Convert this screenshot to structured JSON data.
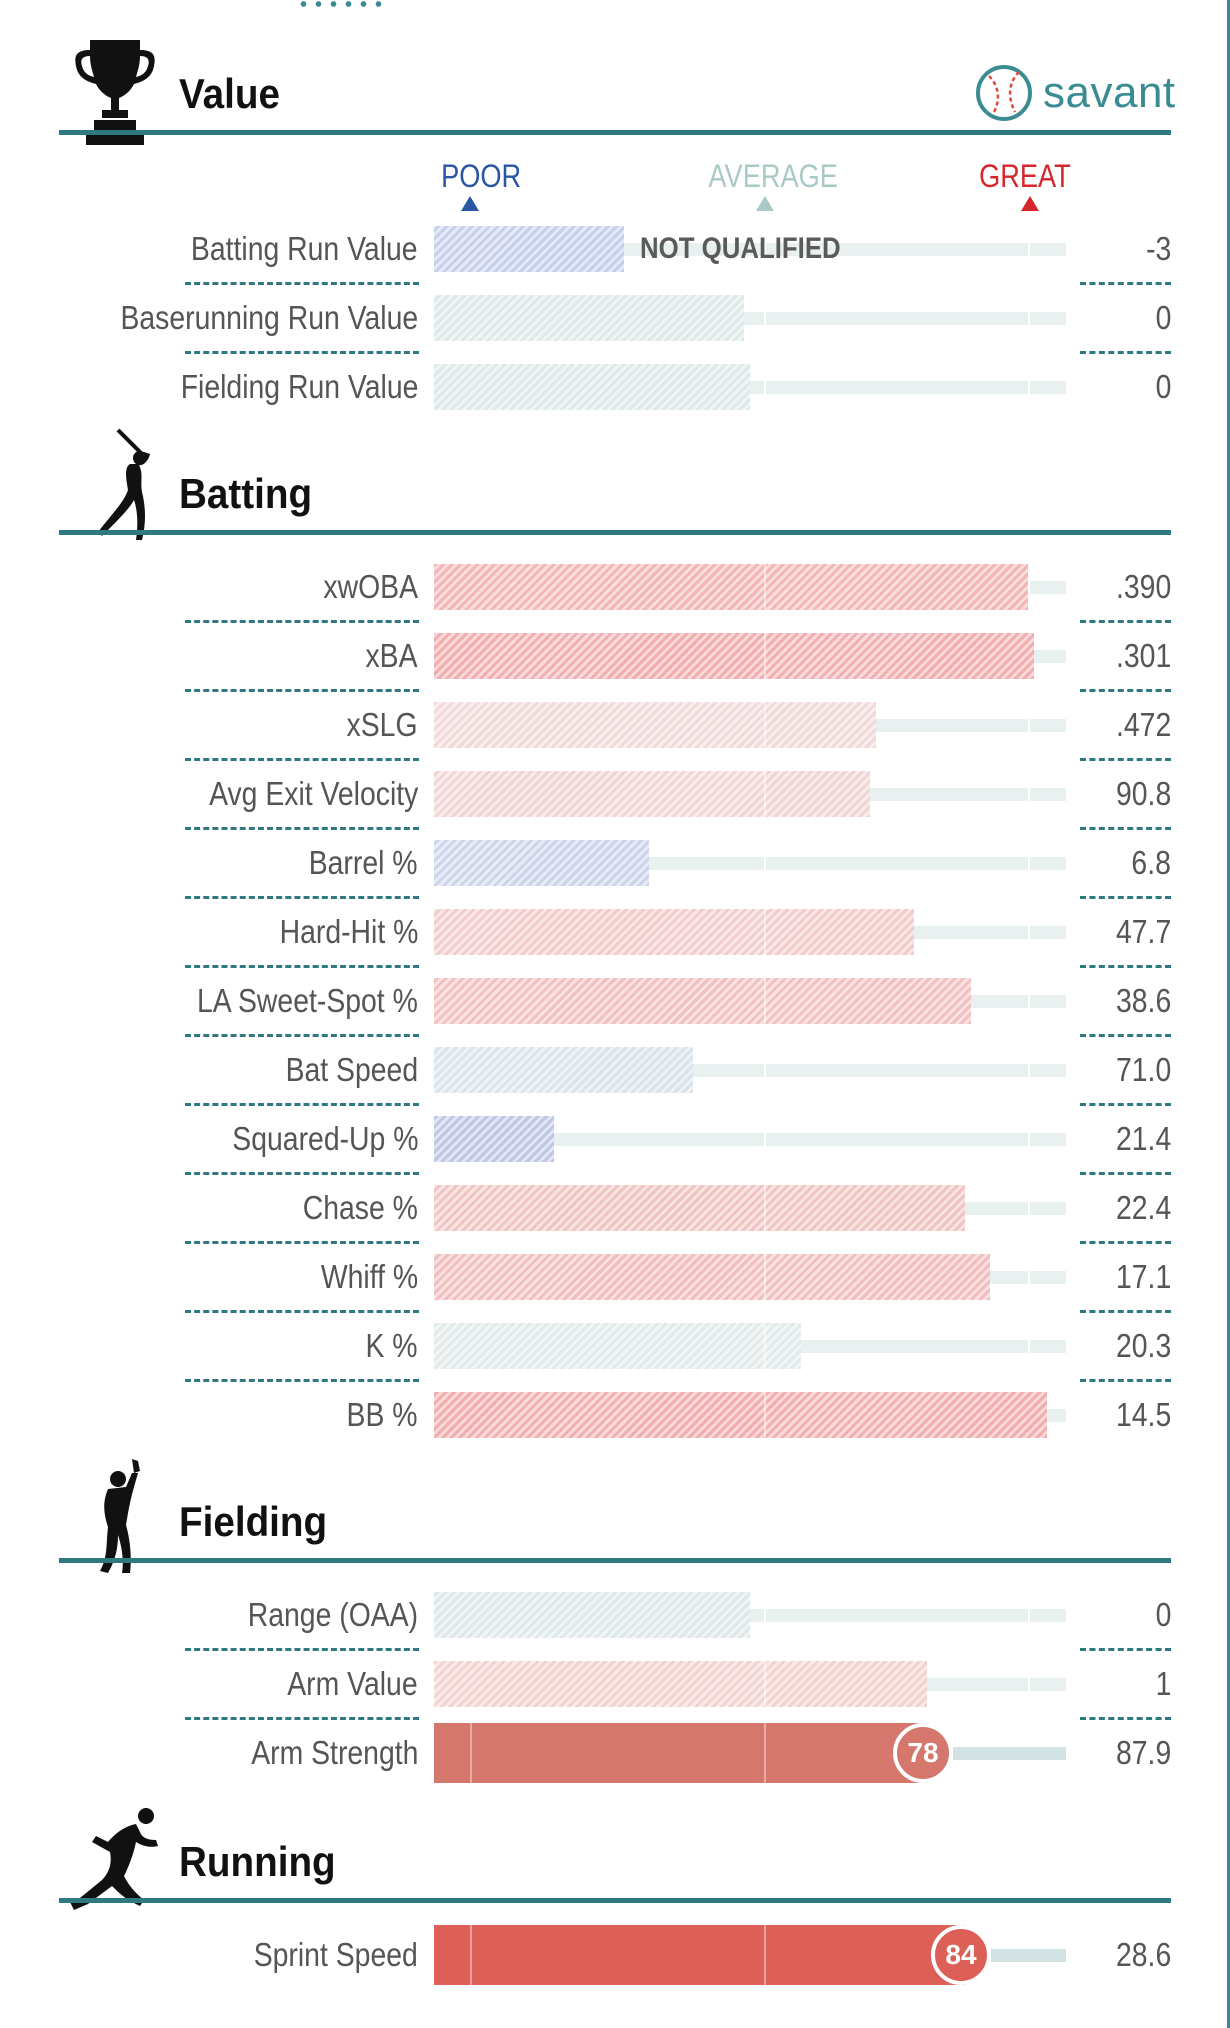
{
  "branding": {
    "logo_text": "savant"
  },
  "scale_header": {
    "poor": {
      "label": "POOR",
      "color": "#2a56a6"
    },
    "average": {
      "label": "AVERAGE",
      "color": "#a9c9c7"
    },
    "great": {
      "label": "GREAT",
      "color": "#d4262b"
    }
  },
  "sections": {
    "value": {
      "title": "Value",
      "rows": [
        {
          "label": "Batting Run Value",
          "value": "-3",
          "percentile": 30,
          "color": "#c7d0ea",
          "status": "NOT QUALIFIED"
        },
        {
          "label": "Baserunning Run Value",
          "value": "0",
          "percentile": 49,
          "color": "#dfe9e9"
        },
        {
          "label": "Fielding Run Value",
          "value": "0",
          "percentile": 50,
          "color": "#dfe9e9"
        }
      ]
    },
    "batting": {
      "title": "Batting",
      "rows": [
        {
          "label": "xwOBA",
          "value": ".390",
          "percentile": 94,
          "color": "#f3b5b5"
        },
        {
          "label": "xBA",
          "value": ".301",
          "percentile": 95,
          "color": "#f2aeae"
        },
        {
          "label": "xSLG",
          "value": ".472",
          "percentile": 70,
          "color": "#f2d9d9"
        },
        {
          "label": "Avg Exit Velocity",
          "value": "90.8",
          "percentile": 69,
          "color": "#f1d5d5"
        },
        {
          "label": "Barrel %",
          "value": "6.8",
          "percentile": 34,
          "color": "#ccd4ea"
        },
        {
          "label": "Hard-Hit %",
          "value": "47.7",
          "percentile": 76,
          "color": "#f2cbcb"
        },
        {
          "label": "LA Sweet-Spot %",
          "value": "38.6",
          "percentile": 85,
          "color": "#f2c0c0"
        },
        {
          "label": "Bat Speed",
          "value": "71.0",
          "percentile": 41,
          "color": "#dae4ea"
        },
        {
          "label": "Squared-Up %",
          "value": "21.4",
          "percentile": 19,
          "color": "#c0c7e5"
        },
        {
          "label": "Chase %",
          "value": "22.4",
          "percentile": 84,
          "color": "#f2c3c3"
        },
        {
          "label": "Whiff %",
          "value": "17.1",
          "percentile": 88,
          "color": "#f2bdbd"
        },
        {
          "label": "K %",
          "value": "20.3",
          "percentile": 58,
          "color": "#e2eaea"
        },
        {
          "label": "BB %",
          "value": "14.5",
          "percentile": 97,
          "color": "#f2aeae"
        }
      ]
    },
    "fielding": {
      "title": "Fielding",
      "rows": [
        {
          "label": "Range (OAA)",
          "value": "0",
          "percentile": 50,
          "color": "#dfe9e9"
        },
        {
          "label": "Arm Value",
          "value": "1",
          "percentile": 78,
          "color": "#f2d3cf"
        },
        {
          "label": "Arm Strength",
          "value": "87.9",
          "percentile": 78,
          "color": "#d5776c",
          "highlight": true,
          "badge": "78"
        }
      ]
    },
    "running": {
      "title": "Running",
      "rows": [
        {
          "label": "Sprint Speed",
          "value": "28.6",
          "percentile": 84,
          "color": "#dc6057",
          "highlight": true,
          "badge": "84"
        }
      ]
    }
  }
}
